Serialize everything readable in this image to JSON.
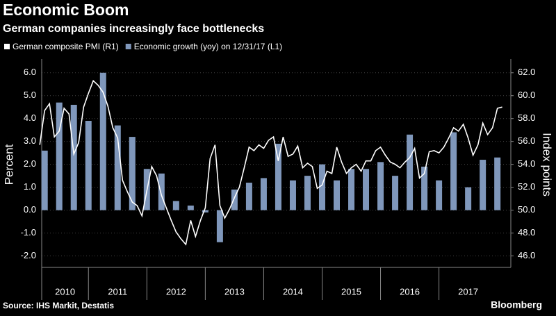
{
  "chart_data": {
    "type": "combo",
    "title": "Economic Boom",
    "subtitle": "German companies increasingly face bottlenecks",
    "ylabel": "Percent",
    "y2label": "Index points",
    "source": "Source: IHS Markit, Destatis",
    "credit": "Bloomberg",
    "xlim": [
      2010.2,
      2018.23
    ],
    "xticks": [
      2010,
      2011,
      2012,
      2013,
      2014,
      2015,
      2016,
      2017
    ],
    "ylim": [
      -2.5,
      6.6
    ],
    "yticks": [
      {
        "value": -2,
        "label": "-2.0"
      },
      {
        "value": -1,
        "label": "-1.0"
      },
      {
        "value": 0,
        "label": "0.0"
      },
      {
        "value": 1,
        "label": "1.0"
      },
      {
        "value": 2,
        "label": "2.0"
      },
      {
        "value": 3,
        "label": "3.0"
      },
      {
        "value": 4,
        "label": "4.0"
      },
      {
        "value": 5,
        "label": "5.0"
      },
      {
        "value": 6,
        "label": "6.0"
      }
    ],
    "y2lim": [
      45,
      63.2
    ],
    "y2ticks": [
      {
        "value": 46,
        "label": "46.0"
      },
      {
        "value": 48,
        "label": "48.0"
      },
      {
        "value": 50,
        "label": "50.0"
      },
      {
        "value": 52,
        "label": "52.0"
      },
      {
        "value": 54,
        "label": "54.0"
      },
      {
        "value": 56,
        "label": "56.0"
      },
      {
        "value": 58,
        "label": "58.0"
      },
      {
        "value": 60,
        "label": "60.0"
      },
      {
        "value": 62,
        "label": "62.0"
      }
    ],
    "grid": true,
    "series": [
      {
        "name": "German composite PMI (R1)",
        "type": "line",
        "axis": "y2",
        "color": "#ffffff",
        "x": [
          2010.167,
          2010.25,
          2010.333,
          2010.417,
          2010.5,
          2010.583,
          2010.667,
          2010.75,
          2010.833,
          2010.917,
          2011,
          2011.083,
          2011.167,
          2011.25,
          2011.333,
          2011.417,
          2011.5,
          2011.583,
          2011.667,
          2011.75,
          2011.833,
          2011.917,
          2012,
          2012.083,
          2012.167,
          2012.25,
          2012.333,
          2012.417,
          2012.5,
          2012.583,
          2012.667,
          2012.75,
          2012.833,
          2012.917,
          2013,
          2013.083,
          2013.167,
          2013.25,
          2013.333,
          2013.417,
          2013.5,
          2013.583,
          2013.667,
          2013.75,
          2013.833,
          2013.917,
          2014,
          2014.083,
          2014.167,
          2014.25,
          2014.333,
          2014.417,
          2014.5,
          2014.583,
          2014.667,
          2014.75,
          2014.833,
          2014.917,
          2015,
          2015.083,
          2015.167,
          2015.25,
          2015.333,
          2015.417,
          2015.5,
          2015.583,
          2015.667,
          2015.75,
          2015.833,
          2015.917,
          2016,
          2016.083,
          2016.167,
          2016.25,
          2016.333,
          2016.417,
          2016.5,
          2016.583,
          2016.667,
          2016.75,
          2016.833,
          2016.917,
          2017,
          2017.083,
          2017.167,
          2017.25,
          2017.333,
          2017.417,
          2017.5,
          2017.583,
          2017.667,
          2017.75,
          2017.833,
          2017.917,
          2018,
          2018.083
        ],
        "values": [
          55.7,
          58.7,
          59.3,
          56.4,
          56.9,
          58.9,
          58.4,
          54.9,
          55.9,
          59.0,
          60.2,
          61.3,
          60.9,
          60.3,
          59.1,
          57.2,
          56.3,
          52.6,
          51.6,
          50.7,
          50.4,
          49.5,
          51.7,
          53.8,
          53.0,
          51.3,
          50.2,
          49.1,
          48.1,
          47.5,
          47.0,
          49.1,
          47.7,
          49.1,
          50.2,
          54.5,
          55.7,
          50.4,
          49.3,
          50.1,
          51.1,
          52.0,
          53.7,
          55.5,
          55.2,
          55.7,
          55.4,
          56.1,
          56.4,
          54.3,
          56.4,
          54.7,
          54.9,
          55.6,
          53.7,
          54.1,
          53.8,
          51.9,
          52.2,
          53.4,
          53.2,
          55.5,
          54.2,
          53.2,
          53.7,
          54.0,
          53.4,
          54.3,
          54.3,
          55.2,
          55.5,
          54.8,
          54.2,
          54.0,
          53.7,
          54.2,
          54.6,
          55.4,
          52.8,
          53.2,
          55.1,
          55.2,
          55.0,
          55.5,
          56.3,
          57.2,
          56.9,
          57.5,
          56.3,
          54.8,
          55.7,
          57.6,
          56.6,
          57.2,
          58.9,
          59.0
        ]
      },
      {
        "name": "Economic growth (yoy) on 12/31/17 (L1)",
        "type": "bar",
        "color": "#7f97bb",
        "x": [
          2010.25,
          2010.5,
          2010.75,
          2011,
          2011.25,
          2011.5,
          2011.75,
          2012,
          2012.25,
          2012.5,
          2012.75,
          2013,
          2013.25,
          2013.5,
          2013.75,
          2014,
          2014.25,
          2014.5,
          2014.75,
          2015,
          2015.25,
          2015.5,
          2015.75,
          2016,
          2016.25,
          2016.5,
          2016.75,
          2017,
          2017.25,
          2017.5,
          2017.75,
          2018
        ],
        "values": [
          2.6,
          4.7,
          4.6,
          3.9,
          6.0,
          3.7,
          3.2,
          1.8,
          1.6,
          0.4,
          0.2,
          -0.1,
          -1.4,
          0.9,
          1.2,
          1.4,
          2.9,
          1.3,
          1.5,
          2.0,
          1.3,
          1.8,
          1.8,
          2.1,
          1.5,
          3.3,
          1.9,
          1.3,
          3.4,
          1.0,
          2.2,
          2.3
        ]
      }
    ]
  }
}
